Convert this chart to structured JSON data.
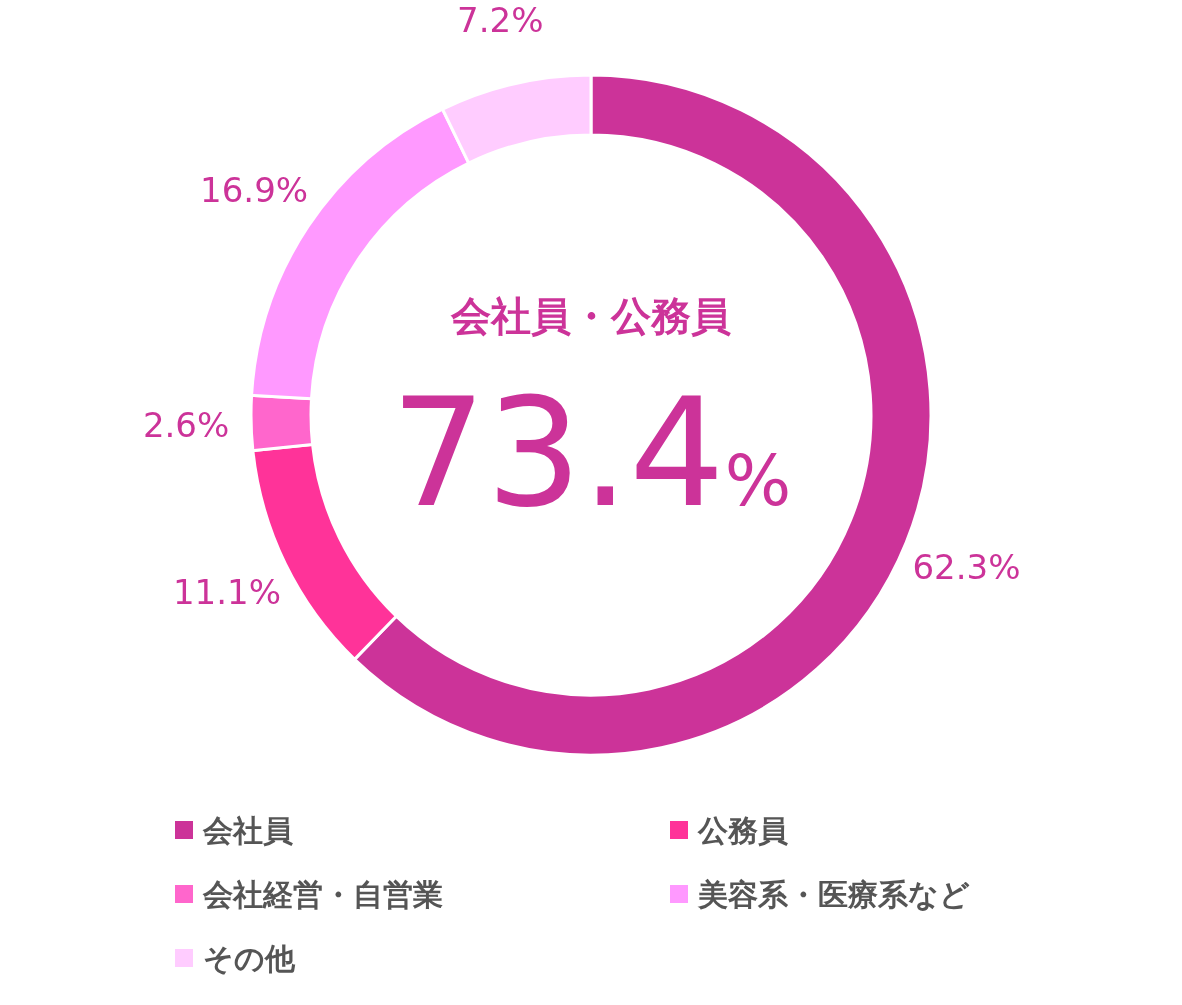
{
  "chart_data": {
    "type": "donut",
    "categories": [
      "会社員",
      "公務員",
      "会社経営・自営業",
      "美容系・医療系など",
      "その他"
    ],
    "values": [
      62.3,
      11.1,
      2.6,
      16.9,
      7.2
    ],
    "colors": [
      "#cc3399",
      "#ff3399",
      "#ff66cc",
      "#ff99ff",
      "#ffccff"
    ],
    "value_labels": [
      "62.3%",
      "11.1%",
      "2.6%",
      "16.9%",
      "7.2%"
    ],
    "legend": "bottom",
    "annotations": [
      "会社員・公務員",
      "73.4%"
    ]
  }
}
